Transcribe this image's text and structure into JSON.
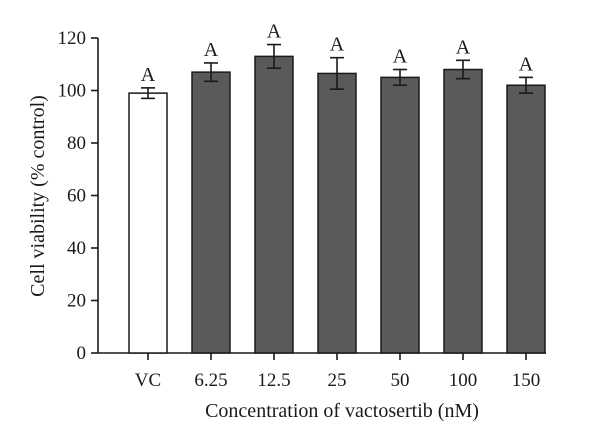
{
  "chart_data": {
    "type": "bar",
    "xlabel": "Concentration of vactosertib (nM)",
    "ylabel": "Cell viability (% control)",
    "ylim": [
      0,
      120
    ],
    "yticks": [
      0,
      20,
      40,
      60,
      80,
      100,
      120
    ],
    "grid": false,
    "categories": [
      "VC",
      "6.25",
      "12.5",
      "25",
      "50",
      "100",
      "150"
    ],
    "values": [
      99,
      107,
      113,
      106.5,
      105,
      108,
      102
    ],
    "errors": [
      2,
      3.5,
      4.5,
      6,
      3,
      3.5,
      3
    ],
    "annotations": [
      "A",
      "A",
      "A",
      "A",
      "A",
      "A",
      "A"
    ],
    "colors": [
      "#ffffff",
      "#5a5a5a",
      "#5a5a5a",
      "#5a5a5a",
      "#5a5a5a",
      "#5a5a5a",
      "#5a5a5a"
    ],
    "stroke_color": "#1a1a1a"
  }
}
